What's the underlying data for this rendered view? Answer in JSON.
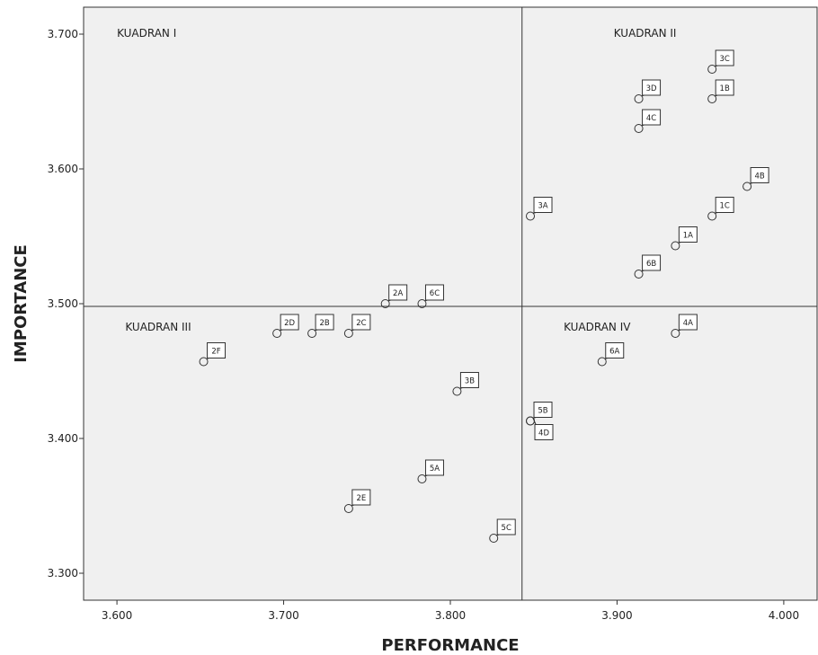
{
  "chart_data": {
    "type": "scatter",
    "xlabel": "PERFORMANCE",
    "ylabel": "IMPORTANCE",
    "xlim": [
      3.58,
      4.02
    ],
    "ylim": [
      3.28,
      3.72
    ],
    "x_ticks": [
      {
        "value": 3.6,
        "label": "3.600"
      },
      {
        "value": 3.7,
        "label": "3.700"
      },
      {
        "value": 3.8,
        "label": "3.800"
      },
      {
        "value": 3.9,
        "label": "3.900"
      },
      {
        "value": 4.0,
        "label": "4.000"
      }
    ],
    "y_ticks": [
      {
        "value": 3.3,
        "label": "3.300"
      },
      {
        "value": 3.4,
        "label": "3.400"
      },
      {
        "value": 3.5,
        "label": "3.500"
      },
      {
        "value": 3.6,
        "label": "3.600"
      },
      {
        "value": 3.7,
        "label": "3.700"
      }
    ],
    "reference_lines": {
      "x": 3.843,
      "y": 3.498
    },
    "quadrant_labels": [
      {
        "text": "KUADRAN I",
        "x": 3.6,
        "y": 3.698
      },
      {
        "text": "KUADRAN II",
        "x": 3.898,
        "y": 3.698
      },
      {
        "text": "KUADRAN III",
        "x": 3.605,
        "y": 3.48
      },
      {
        "text": "KUADRAN IV",
        "x": 3.868,
        "y": 3.48
      }
    ],
    "points": [
      {
        "label": "3C",
        "x": 3.957,
        "y": 3.674
      },
      {
        "label": "1B",
        "x": 3.957,
        "y": 3.652
      },
      {
        "label": "3D",
        "x": 3.913,
        "y": 3.652
      },
      {
        "label": "4C",
        "x": 3.913,
        "y": 3.63
      },
      {
        "label": "4B",
        "x": 3.978,
        "y": 3.587
      },
      {
        "label": "1C",
        "x": 3.957,
        "y": 3.565
      },
      {
        "label": "3A",
        "x": 3.848,
        "y": 3.565
      },
      {
        "label": "1A",
        "x": 3.935,
        "y": 3.543
      },
      {
        "label": "6B",
        "x": 3.913,
        "y": 3.522
      },
      {
        "label": "2A",
        "x": 3.761,
        "y": 3.5
      },
      {
        "label": "6C",
        "x": 3.783,
        "y": 3.5
      },
      {
        "label": "2D",
        "x": 3.696,
        "y": 3.478
      },
      {
        "label": "2B",
        "x": 3.717,
        "y": 3.478
      },
      {
        "label": "2C",
        "x": 3.739,
        "y": 3.478
      },
      {
        "label": "4A",
        "x": 3.935,
        "y": 3.478
      },
      {
        "label": "2F",
        "x": 3.652,
        "y": 3.457
      },
      {
        "label": "6A",
        "x": 3.891,
        "y": 3.457
      },
      {
        "label": "3B",
        "x": 3.804,
        "y": 3.435
      },
      {
        "label": "5B",
        "x": 3.848,
        "y": 3.413
      },
      {
        "label": "4D",
        "x": 3.848,
        "y": 3.413
      },
      {
        "label": "5A",
        "x": 3.783,
        "y": 3.37
      },
      {
        "label": "2E",
        "x": 3.739,
        "y": 3.348
      },
      {
        "label": "5C",
        "x": 3.826,
        "y": 3.326
      }
    ]
  }
}
